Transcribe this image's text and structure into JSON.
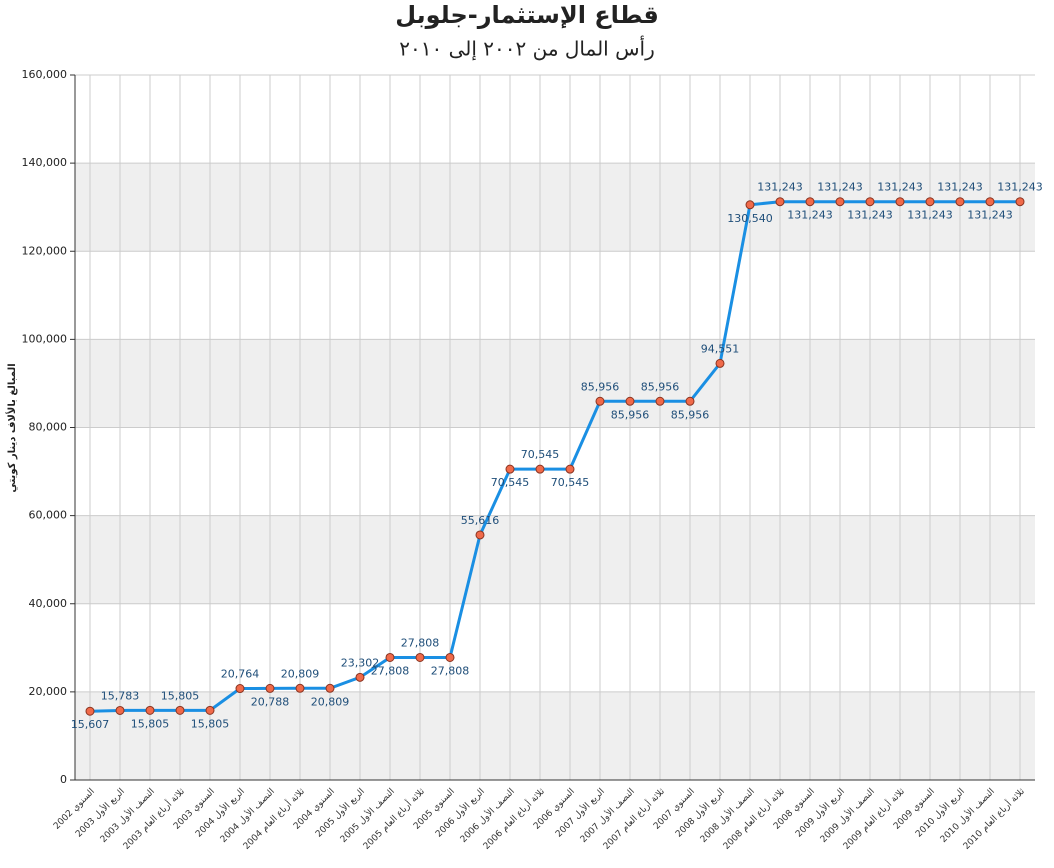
{
  "chart_data": {
    "type": "line",
    "title": "قطاع الإستثمار-جلوبل",
    "subtitle": "رأس المال من ٢٠٠٢ إلى ٢٠١٠",
    "y_label": "المبالغ بالألاف دينار كويتي",
    "categories": [
      "السنوي 2002",
      "الربع الأول 2003",
      "النصف الأول 2003",
      "ثلاثة أرباع العام 2003",
      "السنوي 2003",
      "الربع الأول 2004",
      "النصف الأول 2004",
      "ثلاثة أرباع العام 2004",
      "السنوي 2004",
      "الربع الأول 2005",
      "النصف الأول 2005",
      "ثلاثة أرباع العام 2005",
      "السنوي 2005",
      "الربع الأول 2006",
      "النصف الأول 2006",
      "ثلاثة أرباع العام 2006",
      "السنوي 2006",
      "الربع الأول 2007",
      "النصف الأول 2007",
      "ثلاثة أرباع العام 2007",
      "السنوي 2007",
      "الربع الأول 2008",
      "النصف الأول 2008",
      "ثلاثة أرباع العام 2008",
      "السنوي 2008",
      "الربع الأول 2009",
      "النصف الأول 2009",
      "ثلاثة أرباع العام 2009",
      "السنوي 2009",
      "الربع الأول 2010",
      "النصف الأول 2010",
      "ثلاثة أرباع العام 2010"
    ],
    "series": [
      {
        "name": "رأس المال",
        "color": "#1a8fe3",
        "values": [
          15607,
          15783,
          15805,
          15805,
          15805,
          20764,
          20788,
          20809,
          20809,
          23302,
          27808,
          27808,
          27808,
          55616,
          70545,
          70545,
          70545,
          85956,
          85956,
          85956,
          85956,
          94551,
          130540,
          131243,
          131243,
          131243,
          131243,
          131243,
          131243,
          131243,
          131243,
          131243
        ],
        "value_labels": [
          "15,607",
          "15,783",
          "15,805",
          "15,805",
          "15,805",
          "20,764",
          "20,788",
          "20,809",
          "20,809",
          "23,302",
          "27,808",
          "27,808",
          "27,808",
          "55,616",
          "70,545",
          "70,545",
          "70,545",
          "85,956",
          "85,956",
          "85,956",
          "85,956",
          "94,551",
          "130,540",
          "131,243",
          "131,243",
          "131,243",
          "131,243",
          "131,243",
          "131,243",
          "131,243",
          "131,243",
          "131,243"
        ]
      }
    ],
    "marker_color": "#f06a4a",
    "ylim": [
      0,
      160000
    ],
    "yticks": [
      0,
      {
        "value": 20000,
        "label": "20,000"
      },
      {
        "value": 40000,
        "label": "40,000"
      },
      {
        "value": 60000,
        "label": "60,000"
      },
      {
        "value": 80000,
        "label": "80,000"
      },
      {
        "value": 100000,
        "label": "100,000"
      },
      {
        "value": 120000,
        "label": "120,000"
      },
      {
        "value": 140000,
        "label": "140,000"
      },
      {
        "value": 160000,
        "label": "160,000"
      }
    ],
    "grid": true
  }
}
